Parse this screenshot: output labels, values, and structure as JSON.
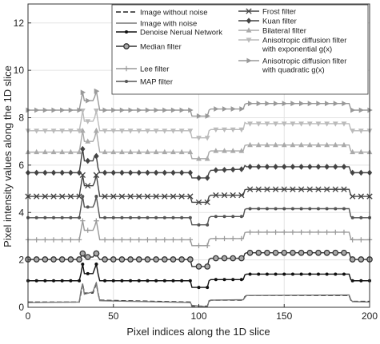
{
  "chart_data": {
    "type": "line",
    "title": "",
    "xlabel": "Pixel indices along the 1D slice",
    "ylabel": "Pixel intensity values along the 1D slice",
    "xlim": [
      0,
      200
    ],
    "ylim": [
      0,
      12.8
    ],
    "xticks": [
      0,
      50,
      100,
      150,
      200
    ],
    "yticks": [
      0,
      2,
      4,
      6,
      8,
      10,
      12
    ],
    "xtick_labels": [
      "0",
      "50",
      "100",
      "150",
      "200"
    ],
    "ytick_labels": [
      "0",
      "2",
      "4",
      "6",
      "8",
      "10",
      "12"
    ],
    "grid": true,
    "legend_position": "top-right",
    "profile_breakpoints_x": [
      0,
      30,
      31,
      32,
      33,
      38,
      39,
      40,
      41,
      42,
      95,
      96,
      105,
      106,
      107,
      126,
      127,
      128,
      188,
      189,
      190,
      200
    ],
    "series": [
      {
        "name": "Image without noise",
        "offset": 0,
        "color": "#222222",
        "dash": "6,3",
        "marker": "none",
        "profile": [
          0.22,
          0.22,
          0.6,
          1.0,
          0.6,
          0.6,
          0.8,
          1.0,
          0.6,
          0.3,
          0.22,
          0.05,
          0.05,
          0.25,
          0.3,
          0.3,
          0.45,
          0.5,
          0.5,
          0.3,
          0.25,
          0.25
        ]
      },
      {
        "name": "Image with noise",
        "offset": 0,
        "color": "#777777",
        "dash": "",
        "marker": "none",
        "profile": [
          0.2,
          0.22,
          0.7,
          1.0,
          0.55,
          0.65,
          0.85,
          1.05,
          0.6,
          0.28,
          0.2,
          0.08,
          0.02,
          0.28,
          0.3,
          0.32,
          0.42,
          0.5,
          0.52,
          0.32,
          0.24,
          0.22
        ]
      },
      {
        "name": "Denoise Nerual Network",
        "offset": 1.12,
        "color": "#111111",
        "dash": "",
        "marker": "dot",
        "profile": [
          0,
          0,
          0.3,
          0.7,
          0.3,
          0.3,
          0.5,
          0.7,
          0.3,
          0,
          0,
          -0.28,
          -0.28,
          0,
          0.05,
          0.05,
          0.25,
          0.28,
          0.28,
          0.05,
          0,
          0
        ]
      },
      {
        "name": "Median filter",
        "offset": 2.02,
        "color": "#333333",
        "dash": "",
        "marker": "circle",
        "profile": [
          0,
          0,
          0.1,
          0.25,
          0.1,
          0.1,
          0.2,
          0.25,
          0.1,
          0,
          0,
          -0.3,
          -0.3,
          0,
          0.05,
          0.05,
          0.25,
          0.28,
          0.28,
          0.05,
          0,
          0
        ]
      },
      {
        "name": "Lee filter",
        "offset": 2.85,
        "color": "#999999",
        "dash": "",
        "marker": "plus",
        "profile": [
          0,
          0,
          0.4,
          0.8,
          0.4,
          0.4,
          0.55,
          0.8,
          0.4,
          0,
          0,
          -0.25,
          -0.25,
          0,
          0.05,
          0.05,
          0.3,
          0.32,
          0.32,
          0.05,
          0,
          0
        ]
      },
      {
        "name": "MAP filter",
        "offset": 3.78,
        "color": "#555555",
        "dash": "",
        "marker": "dot",
        "profile": [
          0,
          0,
          0.45,
          0.9,
          0.45,
          0.45,
          0.6,
          0.9,
          0.45,
          0,
          0,
          -0.3,
          -0.3,
          0,
          0.05,
          0.05,
          0.35,
          0.38,
          0.38,
          0.05,
          0,
          0
        ]
      },
      {
        "name": "Frost filter",
        "offset": 4.68,
        "color": "#444444",
        "dash": "",
        "marker": "x",
        "profile": [
          0,
          0,
          0.45,
          0.9,
          0.45,
          0.45,
          0.6,
          0.9,
          0.45,
          0,
          0,
          -0.25,
          -0.25,
          0,
          0.05,
          0.05,
          0.28,
          0.3,
          0.3,
          0.05,
          0,
          0
        ]
      },
      {
        "name": "Kuan filter",
        "offset": 5.68,
        "color": "#444444",
        "dash": "",
        "marker": "diamond",
        "profile": [
          0,
          0,
          0.5,
          1.0,
          0.5,
          0.5,
          0.7,
          0.7,
          0.2,
          0,
          0,
          -0.22,
          -0.22,
          0,
          0.1,
          0.15,
          0.3,
          0.25,
          0.25,
          0.05,
          0,
          0
        ]
      },
      {
        "name": "Bilateral filter",
        "offset": 6.55,
        "color": "#aaaaaa",
        "dash": "",
        "marker": "triangle-up",
        "profile": [
          0,
          0,
          0.45,
          0.9,
          0.45,
          0.45,
          0.6,
          0.9,
          0.45,
          0,
          0,
          -0.28,
          -0.28,
          0,
          0.05,
          0.05,
          0.28,
          0.3,
          0.3,
          0.05,
          0,
          0
        ]
      },
      {
        "name": "Anisotropic diffusion filter with exponential g(x)",
        "offset": 7.45,
        "color": "#bbbbbb",
        "dash": "",
        "marker": "triangle-down",
        "profile": [
          0,
          0,
          0.4,
          0.85,
          0.4,
          0.4,
          0.55,
          0.85,
          0.4,
          0,
          0,
          -0.3,
          -0.3,
          0,
          0.05,
          0.05,
          0.35,
          0.3,
          0.3,
          0.05,
          0,
          0
        ]
      },
      {
        "name": "Anisotropic diffusion filter with quadratic g(x)",
        "offset": 8.32,
        "color": "#999999",
        "dash": "",
        "marker": "triangle-right",
        "profile": [
          0,
          0,
          0.4,
          0.75,
          0.4,
          0.4,
          0.55,
          0.8,
          0.4,
          0,
          0,
          -0.25,
          -0.25,
          0,
          0.05,
          0.05,
          0.25,
          0.28,
          0.28,
          0.05,
          0,
          0
        ]
      }
    ],
    "legend_col1": [
      0,
      1,
      2,
      3,
      4,
      5
    ],
    "legend_col2": [
      6,
      7,
      8,
      9,
      10
    ],
    "legend_text_lines": {
      "0": [
        "Image without noise"
      ],
      "1": [
        "Image with noise"
      ],
      "2": [
        "Denoise Nerual Network"
      ],
      "3": [
        "Median filter"
      ],
      "4": [
        "Lee filter"
      ],
      "5": [
        "MAP filter"
      ],
      "6": [
        "Frost filter"
      ],
      "7": [
        "Kuan filter"
      ],
      "8": [
        "Bilateral filter"
      ],
      "9": [
        "Anisotropic diffusion filter",
        "with exponential g(x)"
      ],
      "10": [
        "Anisotropic diffusion filter",
        "with quadratic g(x)"
      ]
    }
  }
}
